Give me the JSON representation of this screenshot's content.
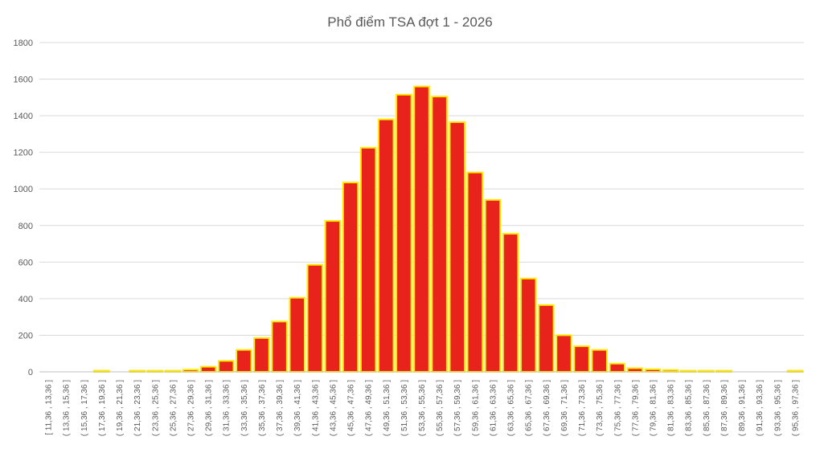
{
  "chart_data": {
    "type": "bar",
    "title": "Phổ điểm TSA đợt 1 - 2026",
    "xlabel": "",
    "ylabel": "",
    "ylim": [
      0,
      1800
    ],
    "yticks": [
      0,
      200,
      400,
      600,
      800,
      1000,
      1200,
      1400,
      1600,
      1800
    ],
    "grid": true,
    "legend": "none",
    "bar_color": "#e8231b",
    "bar_edge_color": "#ffea00",
    "categories": [
      "[ 11,36 , 13,36 ]",
      "( 13,36 , 15,36 ]",
      "( 15,36 , 17,36 ]",
      "( 17,36 , 19,36 ]",
      "( 19,36 , 21,36 ]",
      "( 21,36 , 23,36 ]",
      "( 23,36 , 25,36 ]",
      "( 25,36 , 27,36 ]",
      "( 27,36 , 29,36 ]",
      "( 29,36 , 31,36 ]",
      "( 31,36 , 33,36 ]",
      "( 33,36 , 35,36 ]",
      "( 35,36 , 37,36 ]",
      "( 37,36 , 39,36 ]",
      "( 39,36 , 41,36 ]",
      "( 41,36 , 43,36 ]",
      "( 43,36 , 45,36 ]",
      "( 45,36 , 47,36 ]",
      "( 47,36 , 49,36 ]",
      "( 49,36 , 51,36 ]",
      "( 51,36 , 53,36 ]",
      "( 53,36 , 55,36 ]",
      "( 55,36 , 57,36 ]",
      "( 57,36 , 59,36 ]",
      "( 59,36 , 61,36 ]",
      "( 61,36 , 63,36 ]",
      "( 63,36 , 65,36 ]",
      "( 65,36 , 67,36 ]",
      "( 67,36 , 69,36 ]",
      "( 69,36 , 71,36 ]",
      "( 71,36 , 73,36 ]",
      "( 73,36 , 75,36 ]",
      "( 75,36 , 77,36 ]",
      "( 77,36 , 79,36 ]",
      "( 79,36 , 81,36 ]",
      "( 81,36 , 83,36 ]",
      "( 83,36 , 85,36 ]",
      "( 85,36 , 87,36 ]",
      "( 87,36 , 89,36 ]",
      "( 89,36 , 91,36 ]",
      "( 91,36 , 93,36 ]",
      "( 93,36 , 95,36 ]",
      "( 95,36 , 97,36 ]"
    ],
    "values": [
      0,
      0,
      0,
      3,
      0,
      2,
      3,
      6,
      12,
      28,
      60,
      120,
      185,
      275,
      405,
      585,
      825,
      1035,
      1225,
      1380,
      1515,
      1560,
      1505,
      1365,
      1090,
      940,
      755,
      510,
      365,
      200,
      140,
      120,
      45,
      20,
      14,
      10,
      4,
      3,
      3,
      0,
      0,
      0,
      3
    ]
  }
}
